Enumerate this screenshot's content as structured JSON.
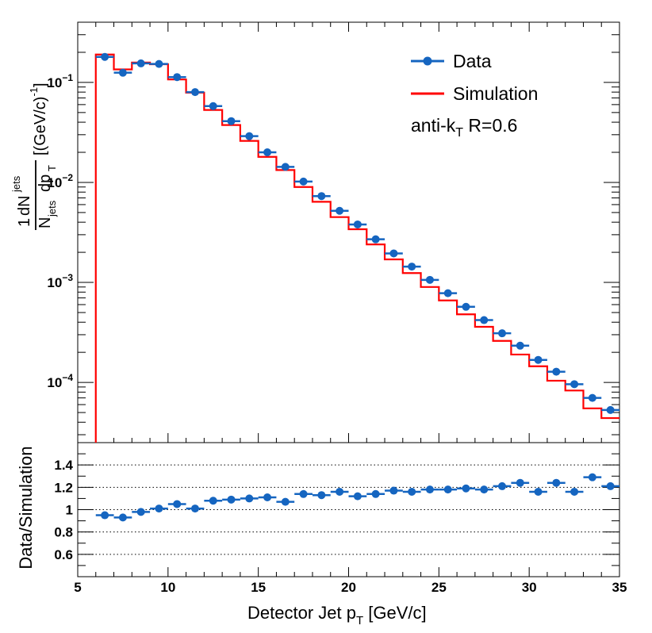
{
  "chart_data": [
    {
      "panel": "top",
      "type": "scatter+step",
      "scale": "log",
      "xlim": [
        5,
        35
      ],
      "ylim": [
        2.5e-05,
        0.4
      ],
      "y_ticks": [
        {
          "value": 0.1,
          "mantissa": "10",
          "exponent": "−1"
        },
        {
          "value": 0.01,
          "mantissa": "10",
          "exponent": "−2"
        },
        {
          "value": 0.001,
          "mantissa": "10",
          "exponent": "−3"
        },
        {
          "value": 0.0001,
          "mantissa": "10",
          "exponent": "−4"
        }
      ],
      "ylabel": {
        "one": "1",
        "dN": "dN",
        "jets_sup": "jets",
        "N": "N",
        "jets_sub": "jets",
        "dp": "dp",
        "T_sub": "T",
        "unit": "[(GeV/c)",
        "unit_exp": "-1",
        "unit_close": "]"
      },
      "legend": {
        "data_label": "Data",
        "sim_label": "Simulation",
        "annotation_main": "anti-k",
        "annotation_sub": "T",
        "annotation_rest": " R=0.6"
      },
      "colors": {
        "data": "#1565c0",
        "simulation": "#ff0000"
      },
      "bins": [
        6,
        7,
        8,
        9,
        10,
        11,
        12,
        13,
        14,
        15,
        16,
        17,
        18,
        19,
        20,
        21,
        22,
        23,
        24,
        25,
        26,
        27,
        28,
        29,
        30,
        31,
        32,
        33,
        34,
        35
      ],
      "series": [
        {
          "name": "Data",
          "x": [
            6.5,
            7.5,
            8.5,
            9.5,
            10.5,
            11.5,
            12.5,
            13.5,
            14.5,
            15.5,
            16.5,
            17.5,
            18.5,
            19.5,
            20.5,
            21.5,
            22.5,
            23.5,
            24.5,
            25.5,
            26.5,
            27.5,
            28.5,
            29.5,
            30.5,
            31.5,
            32.5,
            33.5,
            34.5
          ],
          "values": [
            0.18,
            0.125,
            0.155,
            0.153,
            0.113,
            0.08,
            0.058,
            0.041,
            0.029,
            0.02,
            0.0143,
            0.0102,
            0.0073,
            0.0052,
            0.0038,
            0.0027,
            0.00195,
            0.00144,
            0.00106,
            0.00078,
            0.00057,
            0.00042,
            0.00031,
            0.000233,
            0.000168,
            0.000128,
            9.6e-05,
            7e-05,
            5.3e-05
          ]
        },
        {
          "name": "Simulation",
          "x": [
            6.5,
            7.5,
            8.5,
            9.5,
            10.5,
            11.5,
            12.5,
            13.5,
            14.5,
            15.5,
            16.5,
            17.5,
            18.5,
            19.5,
            20.5,
            21.5,
            22.5,
            23.5,
            24.5,
            25.5,
            26.5,
            27.5,
            28.5,
            29.5,
            30.5,
            31.5,
            32.5,
            33.5,
            34.5
          ],
          "values": [
            0.19,
            0.135,
            0.158,
            0.152,
            0.107,
            0.079,
            0.053,
            0.0375,
            0.026,
            0.018,
            0.0133,
            0.009,
            0.0064,
            0.0045,
            0.0034,
            0.0024,
            0.0017,
            0.00124,
            0.0009,
            0.00066,
            0.00048,
            0.00036,
            0.00026,
            0.00019,
            0.000145,
            0.000104,
            8.3e-05,
            5.5e-05,
            4.4e-05
          ]
        }
      ]
    },
    {
      "panel": "bottom",
      "type": "scatter",
      "xlim": [
        5,
        35
      ],
      "ylim": [
        0.4,
        1.6
      ],
      "ylabel": "Data/Simulation",
      "y_ticks": [
        "0.6",
        "0.8",
        "1",
        "1.2",
        "1.4"
      ],
      "y_tick_values": [
        0.6,
        0.8,
        1.0,
        1.2,
        1.4
      ],
      "grid_lines": [
        0.6,
        0.8,
        1.0,
        1.2,
        1.4
      ],
      "x_ticks": [
        "5",
        "10",
        "15",
        "20",
        "25",
        "30",
        "35"
      ],
      "x_tick_values": [
        5,
        10,
        15,
        20,
        25,
        30,
        35
      ],
      "xlabel_main": "Detector Jet p",
      "xlabel_sub": "T",
      "xlabel_rest": " [GeV/c]",
      "series": [
        {
          "name": "Data/Simulation",
          "x": [
            6.5,
            7.5,
            8.5,
            9.5,
            10.5,
            11.5,
            12.5,
            13.5,
            14.5,
            15.5,
            16.5,
            17.5,
            18.5,
            19.5,
            20.5,
            21.5,
            22.5,
            23.5,
            24.5,
            25.5,
            26.5,
            27.5,
            28.5,
            29.5,
            30.5,
            31.5,
            32.5,
            33.5,
            34.5
          ],
          "values": [
            0.95,
            0.93,
            0.98,
            1.01,
            1.05,
            1.01,
            1.08,
            1.09,
            1.1,
            1.11,
            1.07,
            1.14,
            1.13,
            1.16,
            1.12,
            1.14,
            1.17,
            1.16,
            1.18,
            1.18,
            1.19,
            1.18,
            1.21,
            1.24,
            1.16,
            1.24,
            1.16,
            1.29,
            1.21
          ],
          "errors": [
            0.01,
            0.01,
            0.01,
            0.01,
            0.01,
            0.01,
            0.01,
            0.01,
            0.01,
            0.01,
            0.01,
            0.01,
            0.01,
            0.01,
            0.01,
            0.01,
            0.01,
            0.01,
            0.01,
            0.01,
            0.01,
            0.01,
            0.01,
            0.015,
            0.015,
            0.02,
            0.02,
            0.025,
            0.03
          ]
        }
      ]
    }
  ]
}
